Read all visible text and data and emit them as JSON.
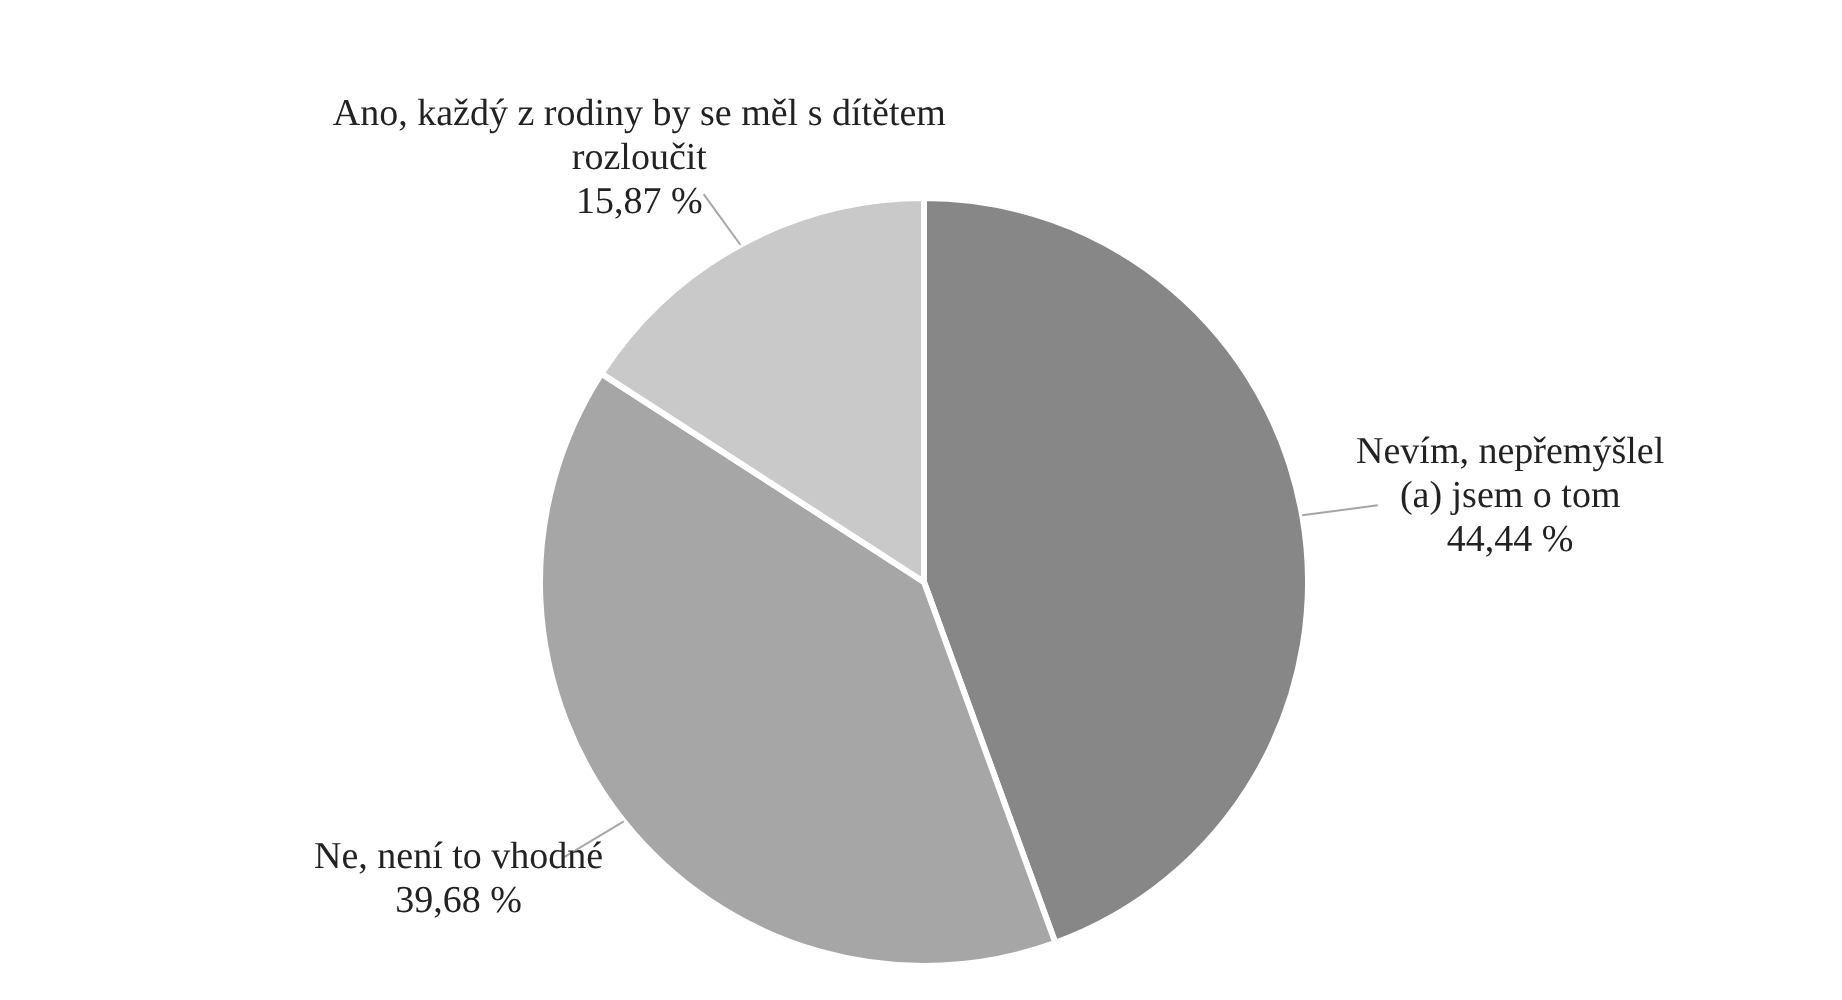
{
  "chart_data": {
    "type": "pie",
    "categories": [
      "Nevím, nepřemýšlel (a) jsem o tom",
      "Ne, není to vhodné",
      "Ano, každý z rodiny by se měl s dítětem rozloučit"
    ],
    "values": [
      44.44,
      39.68,
      15.87
    ],
    "colors": [
      "#878787",
      "#a6a6a6",
      "#c9c9c9"
    ],
    "value_labels": [
      "44,44 %",
      "39,68 %",
      "15,87 %"
    ],
    "legend": false
  }
}
